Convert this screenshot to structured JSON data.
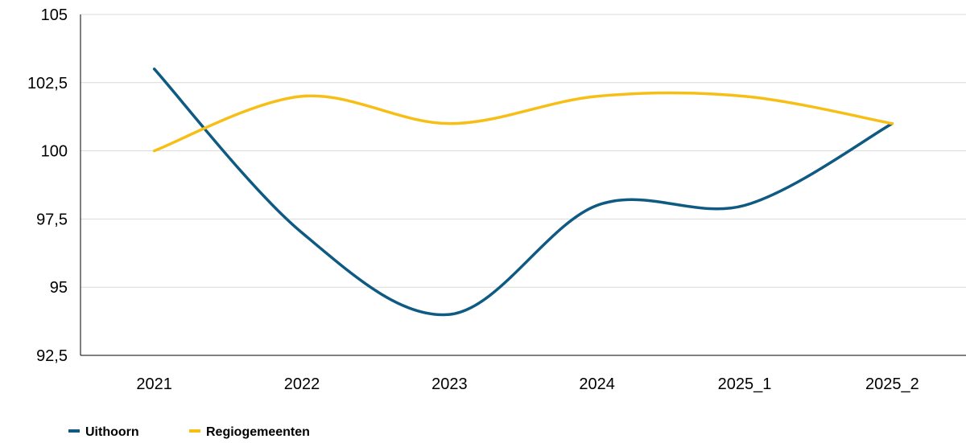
{
  "chart_data": {
    "type": "line",
    "title": "",
    "xlabel": "",
    "ylabel": "",
    "categories": [
      "2021",
      "2022",
      "2023",
      "2024",
      "2025_1",
      "2025_2"
    ],
    "series": [
      {
        "name": "Uithoorn",
        "color": "#0e5a82",
        "values": [
          103,
          97,
          94,
          98,
          98,
          101
        ]
      },
      {
        "name": "Regiogemeenten",
        "color": "#f7bf16",
        "values": [
          100,
          102,
          101,
          102,
          102,
          101
        ]
      }
    ],
    "ylim": [
      92.5,
      105
    ],
    "yticks": [
      {
        "value": 92.5,
        "label": "92,5"
      },
      {
        "value": 95,
        "label": "95"
      },
      {
        "value": 97.5,
        "label": "97,5"
      },
      {
        "value": 100,
        "label": "100"
      },
      {
        "value": 102.5,
        "label": "102,5"
      },
      {
        "value": 105,
        "label": "105"
      }
    ],
    "grid": true,
    "smooth": true,
    "legend_position": "bottom-left"
  }
}
